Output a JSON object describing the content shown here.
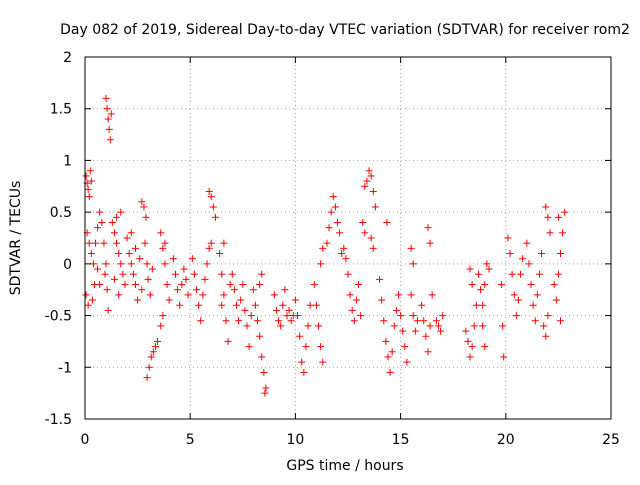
{
  "chart_data": {
    "type": "scatter",
    "title": "Day 082 of 2019, Sidereal Day-to-day VTEC variation (SDTVAR) for receiver rom2",
    "xlabel": "GPS time / hours",
    "ylabel": "SDTVAR / TECUs",
    "xlim": [
      0,
      25
    ],
    "ylim": [
      -1.5,
      2
    ],
    "xticks": [
      0,
      5,
      10,
      15,
      20,
      25
    ],
    "xtick_labels": [
      "0",
      "5",
      "10",
      "15",
      "20",
      "25"
    ],
    "yticks": [
      -1.5,
      -1,
      -0.5,
      0,
      0.5,
      1,
      1.5,
      2
    ],
    "ytick_labels": [
      "-1.5",
      "-1",
      "-0.5",
      "0",
      "0.5",
      "1",
      "1.5",
      "2"
    ],
    "grid": true,
    "marker": "plus",
    "color": "#ff0000",
    "series": [
      {
        "name": "SDTVAR",
        "points": [
          [
            0.05,
            0.85
          ],
          [
            0.1,
            0.78
          ],
          [
            0.15,
            0.72
          ],
          [
            0.2,
            0.65
          ],
          [
            0.25,
            0.9
          ],
          [
            0.3,
            0.8
          ],
          [
            0.1,
            0.3
          ],
          [
            0.2,
            0.2
          ],
          [
            0.3,
            0.1
          ],
          [
            0.4,
            0.0
          ],
          [
            0.45,
            -0.2
          ],
          [
            0.35,
            -0.35
          ],
          [
            0.15,
            -0.4
          ],
          [
            0.05,
            -0.3
          ],
          [
            0.5,
            0.2
          ],
          [
            0.6,
            0.35
          ],
          [
            0.7,
            0.5
          ],
          [
            0.8,
            0.4
          ],
          [
            0.9,
            0.2
          ],
          [
            1.0,
            0.0
          ],
          [
            1.05,
            -0.25
          ],
          [
            1.1,
            -0.45
          ],
          [
            0.95,
            -0.1
          ],
          [
            0.6,
            -0.05
          ],
          [
            0.7,
            -0.2
          ],
          [
            1.0,
            1.6
          ],
          [
            1.05,
            1.5
          ],
          [
            1.1,
            1.4
          ],
          [
            1.15,
            1.3
          ],
          [
            1.2,
            1.2
          ],
          [
            1.25,
            1.45
          ],
          [
            1.3,
            0.4
          ],
          [
            1.4,
            0.3
          ],
          [
            1.5,
            0.2
          ],
          [
            1.6,
            0.1
          ],
          [
            1.7,
            0.0
          ],
          [
            1.8,
            -0.1
          ],
          [
            1.9,
            -0.2
          ],
          [
            1.5,
            0.45
          ],
          [
            1.7,
            0.5
          ],
          [
            1.4,
            -0.15
          ],
          [
            1.6,
            -0.3
          ],
          [
            2.0,
            0.25
          ],
          [
            2.1,
            0.1
          ],
          [
            2.2,
            0.0
          ],
          [
            2.3,
            -0.1
          ],
          [
            2.4,
            -0.2
          ],
          [
            2.5,
            -0.35
          ],
          [
            2.2,
            0.3
          ],
          [
            2.4,
            0.15
          ],
          [
            2.6,
            0.05
          ],
          [
            2.7,
            -0.25
          ],
          [
            2.7,
            0.6
          ],
          [
            2.8,
            0.55
          ],
          [
            2.9,
            0.45
          ],
          [
            2.85,
            0.2
          ],
          [
            2.95,
            0.0
          ],
          [
            3.0,
            -0.15
          ],
          [
            3.1,
            -0.3
          ],
          [
            3.2,
            -0.05
          ],
          [
            2.95,
            -1.1
          ],
          [
            3.05,
            -1.0
          ],
          [
            3.15,
            -0.9
          ],
          [
            3.25,
            -0.85
          ],
          [
            3.35,
            -0.8
          ],
          [
            3.45,
            -0.75
          ],
          [
            3.6,
            0.3
          ],
          [
            3.7,
            0.15
          ],
          [
            3.8,
            0.0
          ],
          [
            3.9,
            -0.2
          ],
          [
            4.0,
            -0.35
          ],
          [
            3.7,
            -0.5
          ],
          [
            3.6,
            -0.6
          ],
          [
            3.8,
            0.2
          ],
          [
            4.2,
            0.05
          ],
          [
            4.3,
            -0.1
          ],
          [
            4.4,
            -0.25
          ],
          [
            4.5,
            -0.4
          ],
          [
            4.6,
            -0.2
          ],
          [
            4.7,
            -0.05
          ],
          [
            4.8,
            -0.15
          ],
          [
            4.9,
            -0.3
          ],
          [
            5.1,
            0.05
          ],
          [
            5.2,
            -0.1
          ],
          [
            5.3,
            -0.25
          ],
          [
            5.4,
            -0.4
          ],
          [
            5.5,
            -0.55
          ],
          [
            5.6,
            -0.3
          ],
          [
            5.7,
            -0.15
          ],
          [
            5.8,
            0.0
          ],
          [
            5.9,
            0.15
          ],
          [
            6.0,
            0.2
          ],
          [
            5.9,
            0.7
          ],
          [
            6.0,
            0.65
          ],
          [
            6.1,
            0.55
          ],
          [
            6.2,
            0.45
          ],
          [
            6.4,
            0.1
          ],
          [
            6.5,
            -0.1
          ],
          [
            6.6,
            -0.3
          ],
          [
            6.7,
            -0.55
          ],
          [
            6.8,
            -0.75
          ],
          [
            6.5,
            -0.4
          ],
          [
            6.6,
            0.2
          ],
          [
            6.9,
            -0.2
          ],
          [
            7.0,
            -0.1
          ],
          [
            7.1,
            -0.25
          ],
          [
            7.2,
            -0.4
          ],
          [
            7.3,
            -0.55
          ],
          [
            7.4,
            -0.35
          ],
          [
            7.5,
            -0.2
          ],
          [
            7.6,
            -0.45
          ],
          [
            7.7,
            -0.6
          ],
          [
            7.8,
            -0.8
          ],
          [
            7.9,
            -0.5
          ],
          [
            8.0,
            -0.25
          ],
          [
            8.1,
            -0.4
          ],
          [
            8.2,
            -0.55
          ],
          [
            8.3,
            -0.7
          ],
          [
            8.4,
            -0.9
          ],
          [
            8.5,
            -1.05
          ],
          [
            8.6,
            -1.2
          ],
          [
            8.55,
            -1.25
          ],
          [
            8.3,
            -0.2
          ],
          [
            8.4,
            -0.1
          ],
          [
            9.0,
            -0.3
          ],
          [
            9.1,
            -0.45
          ],
          [
            9.2,
            -0.55
          ],
          [
            9.3,
            -0.6
          ],
          [
            9.4,
            -0.4
          ],
          [
            9.5,
            -0.25
          ],
          [
            9.6,
            -0.5
          ],
          [
            9.7,
            -0.45
          ],
          [
            9.8,
            -0.55
          ],
          [
            9.9,
            -0.5
          ],
          [
            10.0,
            -0.35
          ],
          [
            10.1,
            -0.5
          ],
          [
            10.2,
            -0.7
          ],
          [
            10.3,
            -0.95
          ],
          [
            10.4,
            -1.05
          ],
          [
            10.5,
            -0.8
          ],
          [
            10.6,
            -0.6
          ],
          [
            10.7,
            -0.4
          ],
          [
            10.9,
            -0.2
          ],
          [
            11.0,
            -0.4
          ],
          [
            11.1,
            -0.6
          ],
          [
            11.2,
            -0.8
          ],
          [
            11.3,
            -0.95
          ],
          [
            11.2,
            0.0
          ],
          [
            11.3,
            0.15
          ],
          [
            11.5,
            0.2
          ],
          [
            11.6,
            0.35
          ],
          [
            11.7,
            0.5
          ],
          [
            11.8,
            0.65
          ],
          [
            11.9,
            0.55
          ],
          [
            12.0,
            0.4
          ],
          [
            12.1,
            0.3
          ],
          [
            12.2,
            0.1
          ],
          [
            12.3,
            0.15
          ],
          [
            12.4,
            0.05
          ],
          [
            12.5,
            -0.1
          ],
          [
            12.6,
            -0.3
          ],
          [
            12.7,
            -0.45
          ],
          [
            12.8,
            -0.55
          ],
          [
            12.9,
            -0.35
          ],
          [
            13.0,
            -0.2
          ],
          [
            13.1,
            -0.5
          ],
          [
            13.2,
            0.4
          ],
          [
            13.3,
            0.3
          ],
          [
            13.3,
            0.75
          ],
          [
            13.4,
            0.8
          ],
          [
            13.5,
            0.9
          ],
          [
            13.6,
            0.85
          ],
          [
            13.7,
            0.7
          ],
          [
            13.8,
            0.55
          ],
          [
            13.6,
            0.25
          ],
          [
            13.7,
            0.15
          ],
          [
            14.0,
            -0.15
          ],
          [
            14.1,
            -0.35
          ],
          [
            14.2,
            -0.55
          ],
          [
            14.3,
            -0.75
          ],
          [
            14.4,
            -0.9
          ],
          [
            14.5,
            -1.05
          ],
          [
            14.6,
            -0.85
          ],
          [
            14.7,
            -0.6
          ],
          [
            14.8,
            -0.45
          ],
          [
            14.35,
            0.4
          ],
          [
            14.9,
            -0.3
          ],
          [
            15.0,
            -0.5
          ],
          [
            15.1,
            -0.65
          ],
          [
            15.2,
            -0.8
          ],
          [
            15.3,
            -0.95
          ],
          [
            15.5,
            -0.3
          ],
          [
            15.6,
            -0.5
          ],
          [
            15.7,
            -0.65
          ],
          [
            15.8,
            -0.55
          ],
          [
            15.5,
            0.15
          ],
          [
            15.6,
            0.0
          ],
          [
            16.0,
            -0.4
          ],
          [
            16.1,
            -0.55
          ],
          [
            16.2,
            -0.7
          ],
          [
            16.3,
            -0.85
          ],
          [
            16.4,
            -0.6
          ],
          [
            16.3,
            0.35
          ],
          [
            16.4,
            0.2
          ],
          [
            16.5,
            -0.3
          ],
          [
            16.7,
            -0.55
          ],
          [
            16.8,
            -0.6
          ],
          [
            16.9,
            -0.65
          ],
          [
            17.0,
            -0.5
          ],
          [
            18.1,
            -0.65
          ],
          [
            18.2,
            -0.75
          ],
          [
            18.3,
            -0.9
          ],
          [
            18.4,
            -0.8
          ],
          [
            18.5,
            -0.6
          ],
          [
            18.6,
            -0.4
          ],
          [
            18.3,
            -0.05
          ],
          [
            18.4,
            -0.2
          ],
          [
            18.7,
            -0.1
          ],
          [
            18.8,
            -0.25
          ],
          [
            18.9,
            -0.4
          ],
          [
            19.0,
            -0.2
          ],
          [
            19.1,
            0.0
          ],
          [
            19.2,
            -0.05
          ],
          [
            18.9,
            -0.6
          ],
          [
            19.0,
            -0.8
          ],
          [
            19.8,
            -0.2
          ],
          [
            19.85,
            -0.6
          ],
          [
            19.9,
            -0.9
          ],
          [
            20.1,
            0.25
          ],
          [
            20.2,
            0.1
          ],
          [
            20.3,
            -0.1
          ],
          [
            20.4,
            -0.3
          ],
          [
            20.5,
            -0.5
          ],
          [
            20.6,
            -0.35
          ],
          [
            20.7,
            -0.1
          ],
          [
            20.8,
            0.05
          ],
          [
            21.0,
            0.2
          ],
          [
            21.1,
            0.0
          ],
          [
            21.2,
            -0.2
          ],
          [
            21.3,
            -0.4
          ],
          [
            21.4,
            -0.55
          ],
          [
            21.5,
            -0.3
          ],
          [
            21.6,
            -0.1
          ],
          [
            21.7,
            0.1
          ],
          [
            21.8,
            -0.6
          ],
          [
            21.9,
            -0.7
          ],
          [
            22.0,
            -0.5
          ],
          [
            22.1,
            0.3
          ],
          [
            21.9,
            0.55
          ],
          [
            22.0,
            0.45
          ],
          [
            22.3,
            -0.2
          ],
          [
            22.4,
            -0.35
          ],
          [
            22.5,
            -0.1
          ],
          [
            22.6,
            0.1
          ],
          [
            22.7,
            0.3
          ],
          [
            22.8,
            0.5
          ],
          [
            22.6,
            -0.55
          ],
          [
            22.5,
            0.45
          ]
        ]
      }
    ]
  }
}
